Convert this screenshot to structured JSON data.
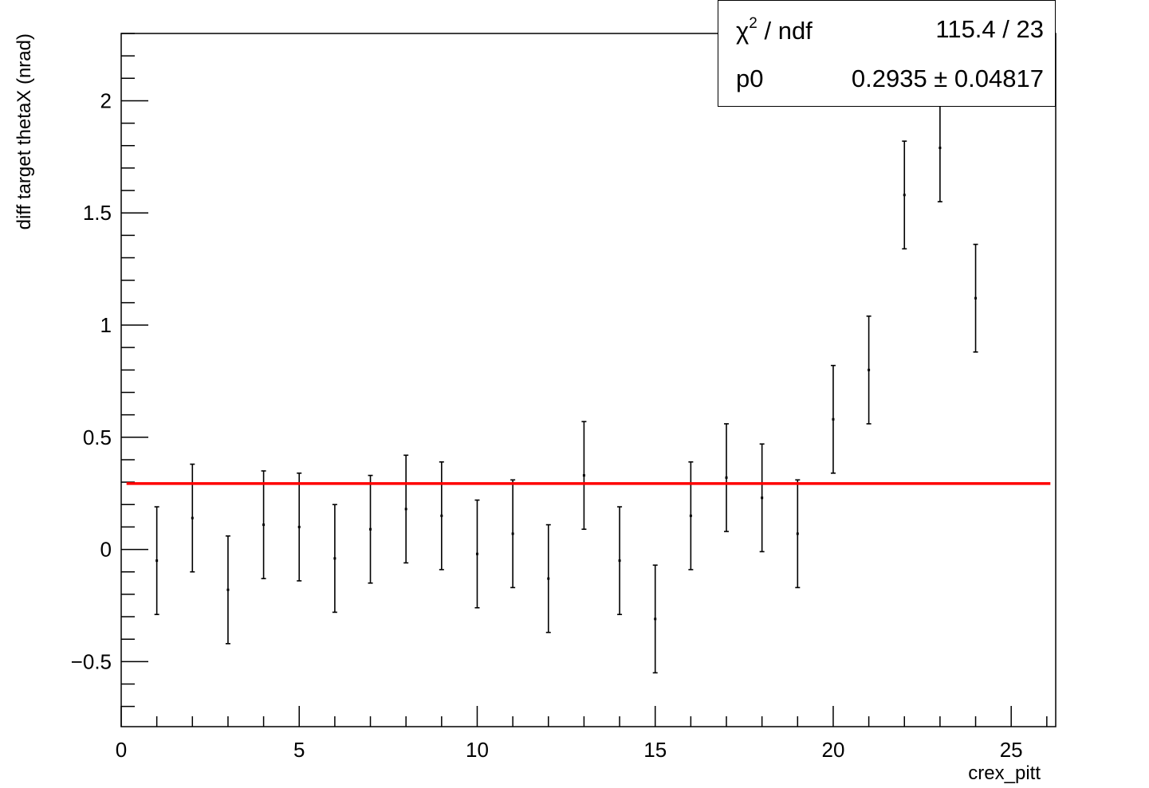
{
  "chart_data": {
    "type": "scatter",
    "xlabel": "crex_pitt",
    "ylabel": "diff target thetaX (nrad)",
    "xlim": [
      0,
      26.25
    ],
    "ylim": [
      -0.79,
      2.3
    ],
    "x_ticks": [
      0,
      5,
      10,
      15,
      20,
      25
    ],
    "y_ticks": [
      -0.5,
      0,
      0.5,
      1,
      1.5,
      2
    ],
    "x_tick_labels": [
      "0",
      "5",
      "10",
      "15",
      "20",
      "25"
    ],
    "y_tick_labels": [
      "−0.5",
      "0",
      "0.5",
      "1",
      "1.5",
      "2"
    ],
    "grid": false,
    "series": [
      {
        "x": [
          1,
          2,
          3,
          4,
          5,
          6,
          7,
          8,
          9,
          10,
          11,
          12,
          13,
          14,
          15,
          16,
          17,
          18,
          19,
          20,
          21,
          22,
          23,
          24
        ],
        "y": [
          -0.05,
          0.14,
          -0.18,
          0.11,
          0.1,
          -0.04,
          0.09,
          0.18,
          0.15,
          -0.02,
          0.07,
          -0.13,
          0.33,
          -0.05,
          -0.31,
          0.15,
          0.32,
          0.23,
          0.07,
          0.58,
          0.8,
          1.58,
          1.79,
          1.12
        ],
        "y_err": [
          0.24,
          0.24,
          0.24,
          0.24,
          0.24,
          0.24,
          0.24,
          0.24,
          0.24,
          0.24,
          0.24,
          0.24,
          0.24,
          0.24,
          0.24,
          0.24,
          0.24,
          0.24,
          0.24,
          0.24,
          0.24,
          0.24,
          0.24,
          0.24
        ]
      }
    ],
    "fit": {
      "type": "constant",
      "value": 0.2935,
      "x_range": [
        0.15,
        26.1
      ],
      "color": "#ff0000"
    }
  },
  "stats": {
    "chi2_symbol": "χ",
    "chi2_sup": "2",
    "chi2_rest": " / ndf",
    "chi2_value": "115.4 / 23",
    "p0_label": "p0",
    "p0_value": "0.2935 ± 0.04817"
  }
}
